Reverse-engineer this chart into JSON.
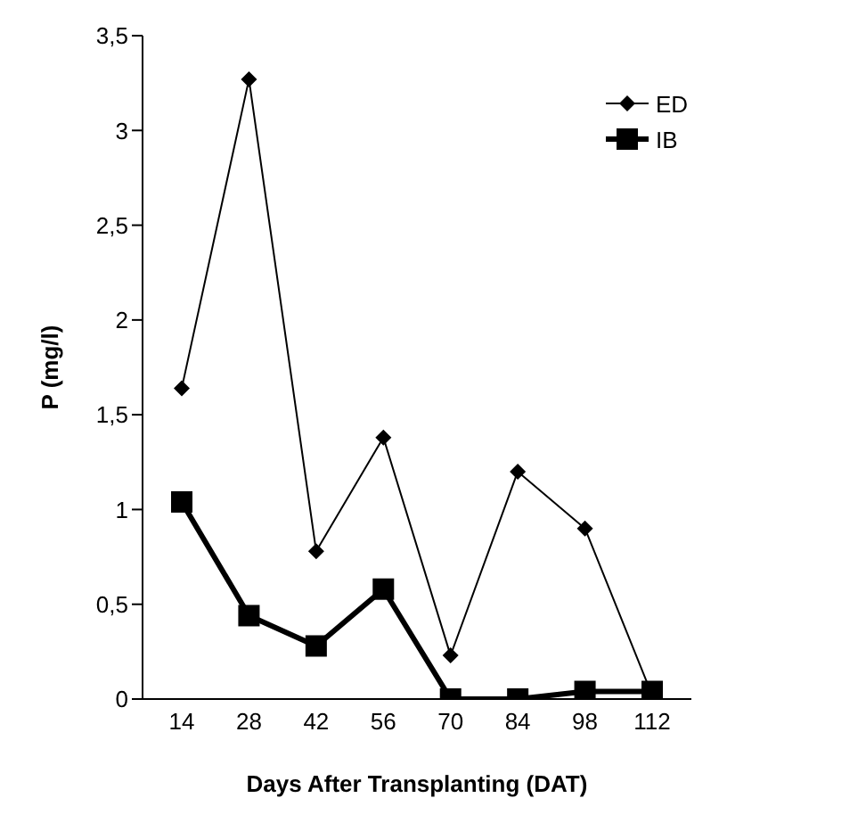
{
  "chart_data": {
    "type": "line",
    "xlabel": "Days  After Transplanting (DAT)",
    "ylabel": "P (mg/l)",
    "categories": [
      "14",
      "28",
      "42",
      "56",
      "70",
      "84",
      "98",
      "112"
    ],
    "series": [
      {
        "name": "ED",
        "color": "#000000",
        "marker": "diamond",
        "values": [
          1.64,
          3.27,
          0.78,
          1.38,
          0.23,
          1.2,
          0.9,
          0.02
        ]
      },
      {
        "name": "IB",
        "color": "#000000",
        "marker": "square",
        "values": [
          1.04,
          0.44,
          0.28,
          0.58,
          0,
          0,
          0.04,
          0.04
        ]
      }
    ],
    "ylim": [
      0,
      3.5
    ],
    "yticks": [
      {
        "value": 0,
        "label": "0"
      },
      {
        "value": 0.5,
        "label": "0,5"
      },
      {
        "value": 1,
        "label": "1"
      },
      {
        "value": 1.5,
        "label": "1,5"
      },
      {
        "value": 2,
        "label": "2"
      },
      {
        "value": 2.5,
        "label": "2,5"
      },
      {
        "value": 3,
        "label": "3"
      },
      {
        "value": 3.5,
        "label": "3,5"
      }
    ],
    "grid": false,
    "legend": "top right",
    "line_style": "solid"
  }
}
